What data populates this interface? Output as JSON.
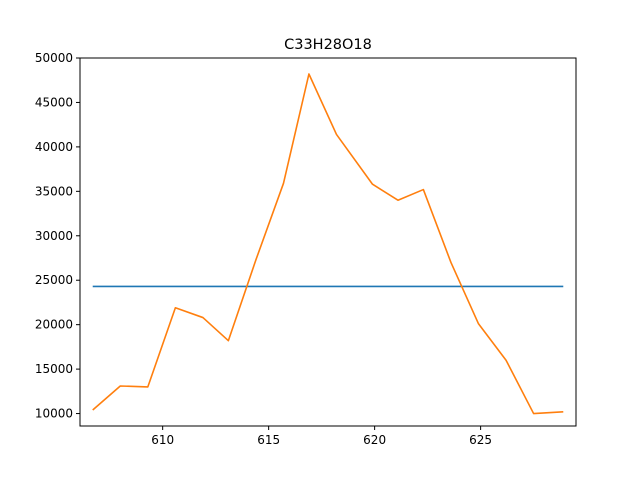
{
  "chart_data": {
    "type": "line",
    "title": "C33H28O18",
    "xlabel": "",
    "ylabel": "",
    "xlim": [
      606.1,
      629.5
    ],
    "ylim": [
      8600,
      50000
    ],
    "grid": false,
    "x_ticks": [
      610,
      615,
      620,
      625
    ],
    "y_ticks": [
      10000,
      15000,
      20000,
      25000,
      30000,
      35000,
      40000,
      45000,
      50000
    ],
    "x_tick_labels": [
      "610",
      "615",
      "620",
      "625"
    ],
    "y_tick_labels": [
      "10000",
      "15000",
      "20000",
      "25000",
      "30000",
      "35000",
      "40000",
      "45000",
      "50000"
    ],
    "series": [
      {
        "color": "#1f77b4",
        "x": [
          606.7,
          628.9
        ],
        "y": [
          24300,
          24300
        ]
      },
      {
        "color": "#ff7f0e",
        "x": [
          606.7,
          608.0,
          609.3,
          610.6,
          611.9,
          613.1,
          614.4,
          615.7,
          616.9,
          618.2,
          619.9,
          621.1,
          622.3,
          623.6,
          624.9,
          626.2,
          627.5,
          628.9
        ],
        "y": [
          10400,
          13100,
          13000,
          21900,
          20800,
          18200,
          27300,
          35900,
          48200,
          41400,
          35800,
          34000,
          35200,
          27000,
          20100,
          16000,
          10000,
          10200
        ]
      }
    ]
  }
}
